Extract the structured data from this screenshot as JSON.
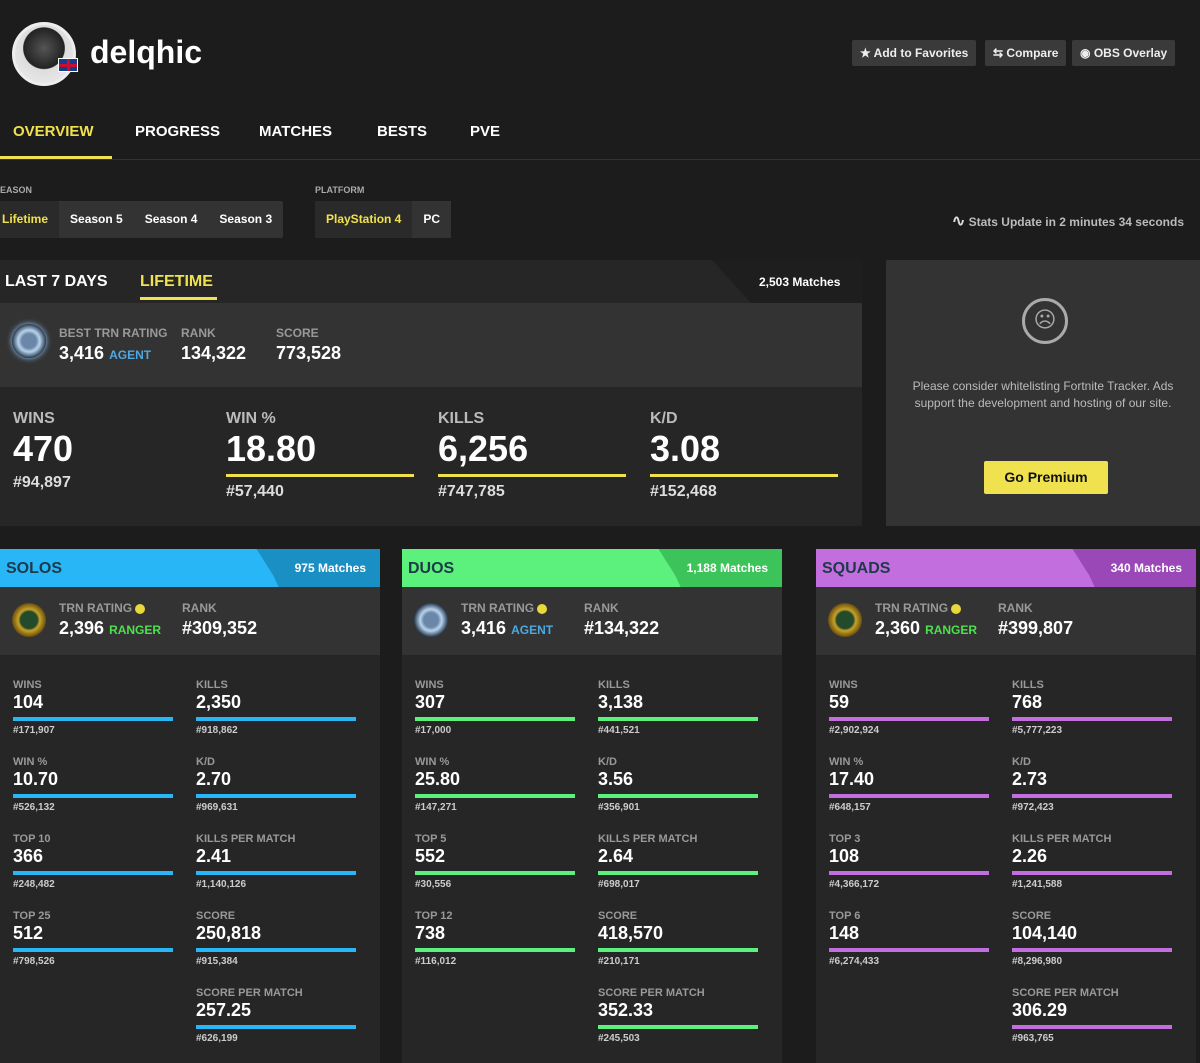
{
  "profile": {
    "username": "delqhic",
    "flag": "uk-flag"
  },
  "header_buttons": [
    {
      "icon": "star-icon",
      "glyph": "★",
      "label": "Add to Favorites"
    },
    {
      "icon": "compare-icon",
      "glyph": "⇆",
      "label": "Compare"
    },
    {
      "icon": "obs-icon",
      "glyph": "◉",
      "label": "OBS Overlay"
    }
  ],
  "nav": {
    "tabs": [
      "OVERVIEW",
      "PROGRESS",
      "MATCHES",
      "BESTS",
      "PVE"
    ],
    "active": "OVERVIEW"
  },
  "filters": {
    "season_label": "EASON",
    "seasons": [
      "Lifetime",
      "Season 5",
      "Season 4",
      "Season 3"
    ],
    "platform_label": "PLATFORM",
    "platforms": [
      "PlayStation 4",
      "PC"
    ],
    "update": "Stats Update in 2 minutes 34 seconds"
  },
  "overview": {
    "tabs": [
      "LAST 7 DAYS",
      "LIFETIME"
    ],
    "active": "LIFETIME",
    "matches": "2,503 Matches",
    "rating_label": "BEST TRN RATING",
    "rating": "3,416",
    "tier": "AGENT",
    "rank_label": "RANK",
    "rank": "134,322",
    "score_label": "SCORE",
    "score": "773,528",
    "stats": [
      {
        "label": "WINS",
        "value": "470",
        "rank": "#94,897"
      },
      {
        "label": "WIN %",
        "value": "18.80",
        "rank": "#57,440"
      },
      {
        "label": "KILLS",
        "value": "6,256",
        "rank": "#747,785"
      },
      {
        "label": "K/D",
        "value": "3.08",
        "rank": "#152,468"
      }
    ]
  },
  "ad": {
    "text": "Please consider whitelisting Fortnite Tracker. Ads support the development and hosting of our site.",
    "button": "Go Premium"
  },
  "colors": {
    "accent": "#f0e24e",
    "solos": "#29b6f6",
    "duos": "#5cf07c",
    "squads": "#c26ede",
    "agent": "#4fa8e0",
    "ranger": "#4ee04e"
  },
  "modes": [
    {
      "name": "SOLOS",
      "matches": "975 Matches",
      "color": "#29b6f6",
      "dark": "#1a8fc4",
      "rating_label": "TRN RATING",
      "rating": "2,396",
      "tier": "RANGER",
      "rank_label": "RANK",
      "rank": "#309,352",
      "left": [
        {
          "label": "WINS",
          "value": "104",
          "rank": "#171,907"
        },
        {
          "label": "WIN %",
          "value": "10.70",
          "rank": "#526,132"
        },
        {
          "label": "TOP 10",
          "value": "366",
          "rank": "#248,482"
        },
        {
          "label": "TOP 25",
          "value": "512",
          "rank": "#798,526"
        }
      ],
      "right": [
        {
          "label": "KILLS",
          "value": "2,350",
          "rank": "#918,862"
        },
        {
          "label": "K/D",
          "value": "2.70",
          "rank": "#969,631"
        },
        {
          "label": "KILLS PER MATCH",
          "value": "2.41",
          "rank": "#1,140,126"
        },
        {
          "label": "SCORE",
          "value": "250,818",
          "rank": "#915,384"
        },
        {
          "label": "SCORE PER MATCH",
          "value": "257.25",
          "rank": "#626,199"
        }
      ]
    },
    {
      "name": "DUOS",
      "matches": "1,188 Matches",
      "color": "#5cf07c",
      "dark": "#3cc45a",
      "rating_label": "TRN RATING",
      "rating": "3,416",
      "tier": "AGENT",
      "rank_label": "RANK",
      "rank": "#134,322",
      "left": [
        {
          "label": "WINS",
          "value": "307",
          "rank": "#17,000"
        },
        {
          "label": "WIN %",
          "value": "25.80",
          "rank": "#147,271"
        },
        {
          "label": "TOP 5",
          "value": "552",
          "rank": "#30,556"
        },
        {
          "label": "TOP 12",
          "value": "738",
          "rank": "#116,012"
        }
      ],
      "right": [
        {
          "label": "KILLS",
          "value": "3,138",
          "rank": "#441,521"
        },
        {
          "label": "K/D",
          "value": "3.56",
          "rank": "#356,901"
        },
        {
          "label": "KILLS PER MATCH",
          "value": "2.64",
          "rank": "#698,017"
        },
        {
          "label": "SCORE",
          "value": "418,570",
          "rank": "#210,171"
        },
        {
          "label": "SCORE PER MATCH",
          "value": "352.33",
          "rank": "#245,503"
        }
      ]
    },
    {
      "name": "SQUADS",
      "matches": "340 Matches",
      "color": "#c26ede",
      "dark": "#9a48b8",
      "rating_label": "TRN RATING",
      "rating": "2,360",
      "tier": "RANGER",
      "rank_label": "RANK",
      "rank": "#399,807",
      "left": [
        {
          "label": "WINS",
          "value": "59",
          "rank": "#2,902,924"
        },
        {
          "label": "WIN %",
          "value": "17.40",
          "rank": "#648,157"
        },
        {
          "label": "TOP 3",
          "value": "108",
          "rank": "#4,366,172"
        },
        {
          "label": "TOP 6",
          "value": "148",
          "rank": "#6,274,433"
        }
      ],
      "right": [
        {
          "label": "KILLS",
          "value": "768",
          "rank": "#5,777,223"
        },
        {
          "label": "K/D",
          "value": "2.73",
          "rank": "#972,423"
        },
        {
          "label": "KILLS PER MATCH",
          "value": "2.26",
          "rank": "#1,241,588"
        },
        {
          "label": "SCORE",
          "value": "104,140",
          "rank": "#8,296,980"
        },
        {
          "label": "SCORE PER MATCH",
          "value": "306.29",
          "rank": "#963,765"
        }
      ]
    }
  ]
}
